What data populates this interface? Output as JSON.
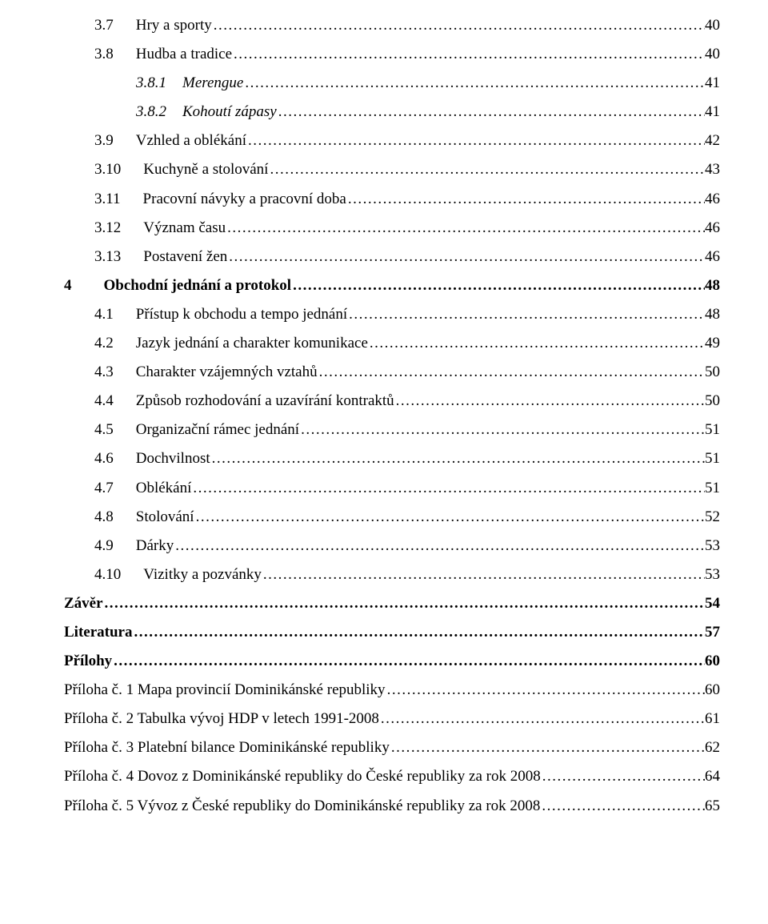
{
  "entries": [
    {
      "level": 1,
      "num": "3.7",
      "title": "Hry a sporty",
      "page": "40",
      "italic": false,
      "bold": false
    },
    {
      "level": 1,
      "num": "3.8",
      "title": "Hudba a tradice",
      "page": "40",
      "italic": false,
      "bold": false
    },
    {
      "level": 2,
      "num": "3.8.1",
      "title": "Merengue",
      "page": "41",
      "italic": true,
      "bold": false
    },
    {
      "level": 2,
      "num": "3.8.2",
      "title": "Kohoutí zápasy",
      "page": "41",
      "italic": true,
      "bold": false
    },
    {
      "level": 1,
      "num": "3.9",
      "title": "Vzhled a oblékání",
      "page": "42",
      "italic": false,
      "bold": false
    },
    {
      "level": 1,
      "num": "3.10",
      "title": "Kuchyně a stolování",
      "page": "43",
      "italic": false,
      "bold": false
    },
    {
      "level": 1,
      "num": "3.11",
      "title": "Pracovní návyky a pracovní doba",
      "page": "46",
      "italic": false,
      "bold": false
    },
    {
      "level": 1,
      "num": "3.12",
      "title": "Význam času",
      "page": "46",
      "italic": false,
      "bold": false
    },
    {
      "level": 1,
      "num": "3.13",
      "title": "Postavení žen",
      "page": "46",
      "italic": false,
      "bold": false
    },
    {
      "level": 0,
      "num": "4",
      "title": "Obchodní jednání a protokol",
      "page": "48",
      "italic": false,
      "bold": true
    },
    {
      "level": 1,
      "num": "4.1",
      "title": "Přístup k obchodu a tempo jednání",
      "page": "48",
      "italic": false,
      "bold": false
    },
    {
      "level": 1,
      "num": "4.2",
      "title": "Jazyk jednání a charakter komunikace",
      "page": "49",
      "italic": false,
      "bold": false
    },
    {
      "level": 1,
      "num": "4.3",
      "title": "Charakter vzájemných vztahů",
      "page": "50",
      "italic": false,
      "bold": false
    },
    {
      "level": 1,
      "num": "4.4",
      "title": "Způsob rozhodování a uzavírání kontraktů",
      "page": "50",
      "italic": false,
      "bold": false
    },
    {
      "level": 1,
      "num": "4.5",
      "title": "Organizační rámec jednání",
      "page": "51",
      "italic": false,
      "bold": false
    },
    {
      "level": 1,
      "num": "4.6",
      "title": "Dochvilnost",
      "page": "51",
      "italic": false,
      "bold": false
    },
    {
      "level": 1,
      "num": "4.7",
      "title": "Oblékání",
      "page": "51",
      "italic": false,
      "bold": false
    },
    {
      "level": 1,
      "num": "4.8",
      "title": "Stolování",
      "page": "52",
      "italic": false,
      "bold": false
    },
    {
      "level": 1,
      "num": "4.9",
      "title": "Dárky",
      "page": "53",
      "italic": false,
      "bold": false
    },
    {
      "level": 1,
      "num": "4.10",
      "title": "Vizitky a pozvánky",
      "page": "53",
      "italic": false,
      "bold": false
    },
    {
      "level": 0,
      "num": "",
      "title": "Závěr",
      "page": "54",
      "italic": false,
      "bold": true
    },
    {
      "level": 0,
      "num": "",
      "title": "Literatura",
      "page": "57",
      "italic": false,
      "bold": true
    },
    {
      "level": 0,
      "num": "",
      "title": "Přílohy",
      "page": "60",
      "italic": false,
      "bold": true
    },
    {
      "level": 1,
      "num": "",
      "title": "Příloha č. 1 Mapa provincií Dominikánské republiky",
      "page": "60",
      "italic": false,
      "bold": false,
      "hang": true
    },
    {
      "level": 1,
      "num": "",
      "title": "Příloha č. 2 Tabulka vývoj HDP v letech 1991-2008",
      "page": "61",
      "italic": false,
      "bold": false,
      "hang": true
    },
    {
      "level": 1,
      "num": "",
      "title": "Příloha č. 3 Platební bilance Dominikánské republiky",
      "page": "62",
      "italic": false,
      "bold": false,
      "hang": true
    },
    {
      "level": 1,
      "num": "",
      "title": "Příloha č. 4 Dovoz z Dominikánské republiky do České republiky za rok 2008",
      "page": "64",
      "italic": false,
      "bold": false,
      "hang": true
    },
    {
      "level": 1,
      "num": "",
      "title": "Příloha č. 5 Vývoz z České republiky do Dominikánské republiky za rok 2008",
      "page": "65",
      "italic": false,
      "bold": false,
      "hang": true
    }
  ],
  "colors": {
    "text": "#000000",
    "background": "#ffffff"
  },
  "font": {
    "family": "Times New Roman",
    "size_pt": 14
  }
}
